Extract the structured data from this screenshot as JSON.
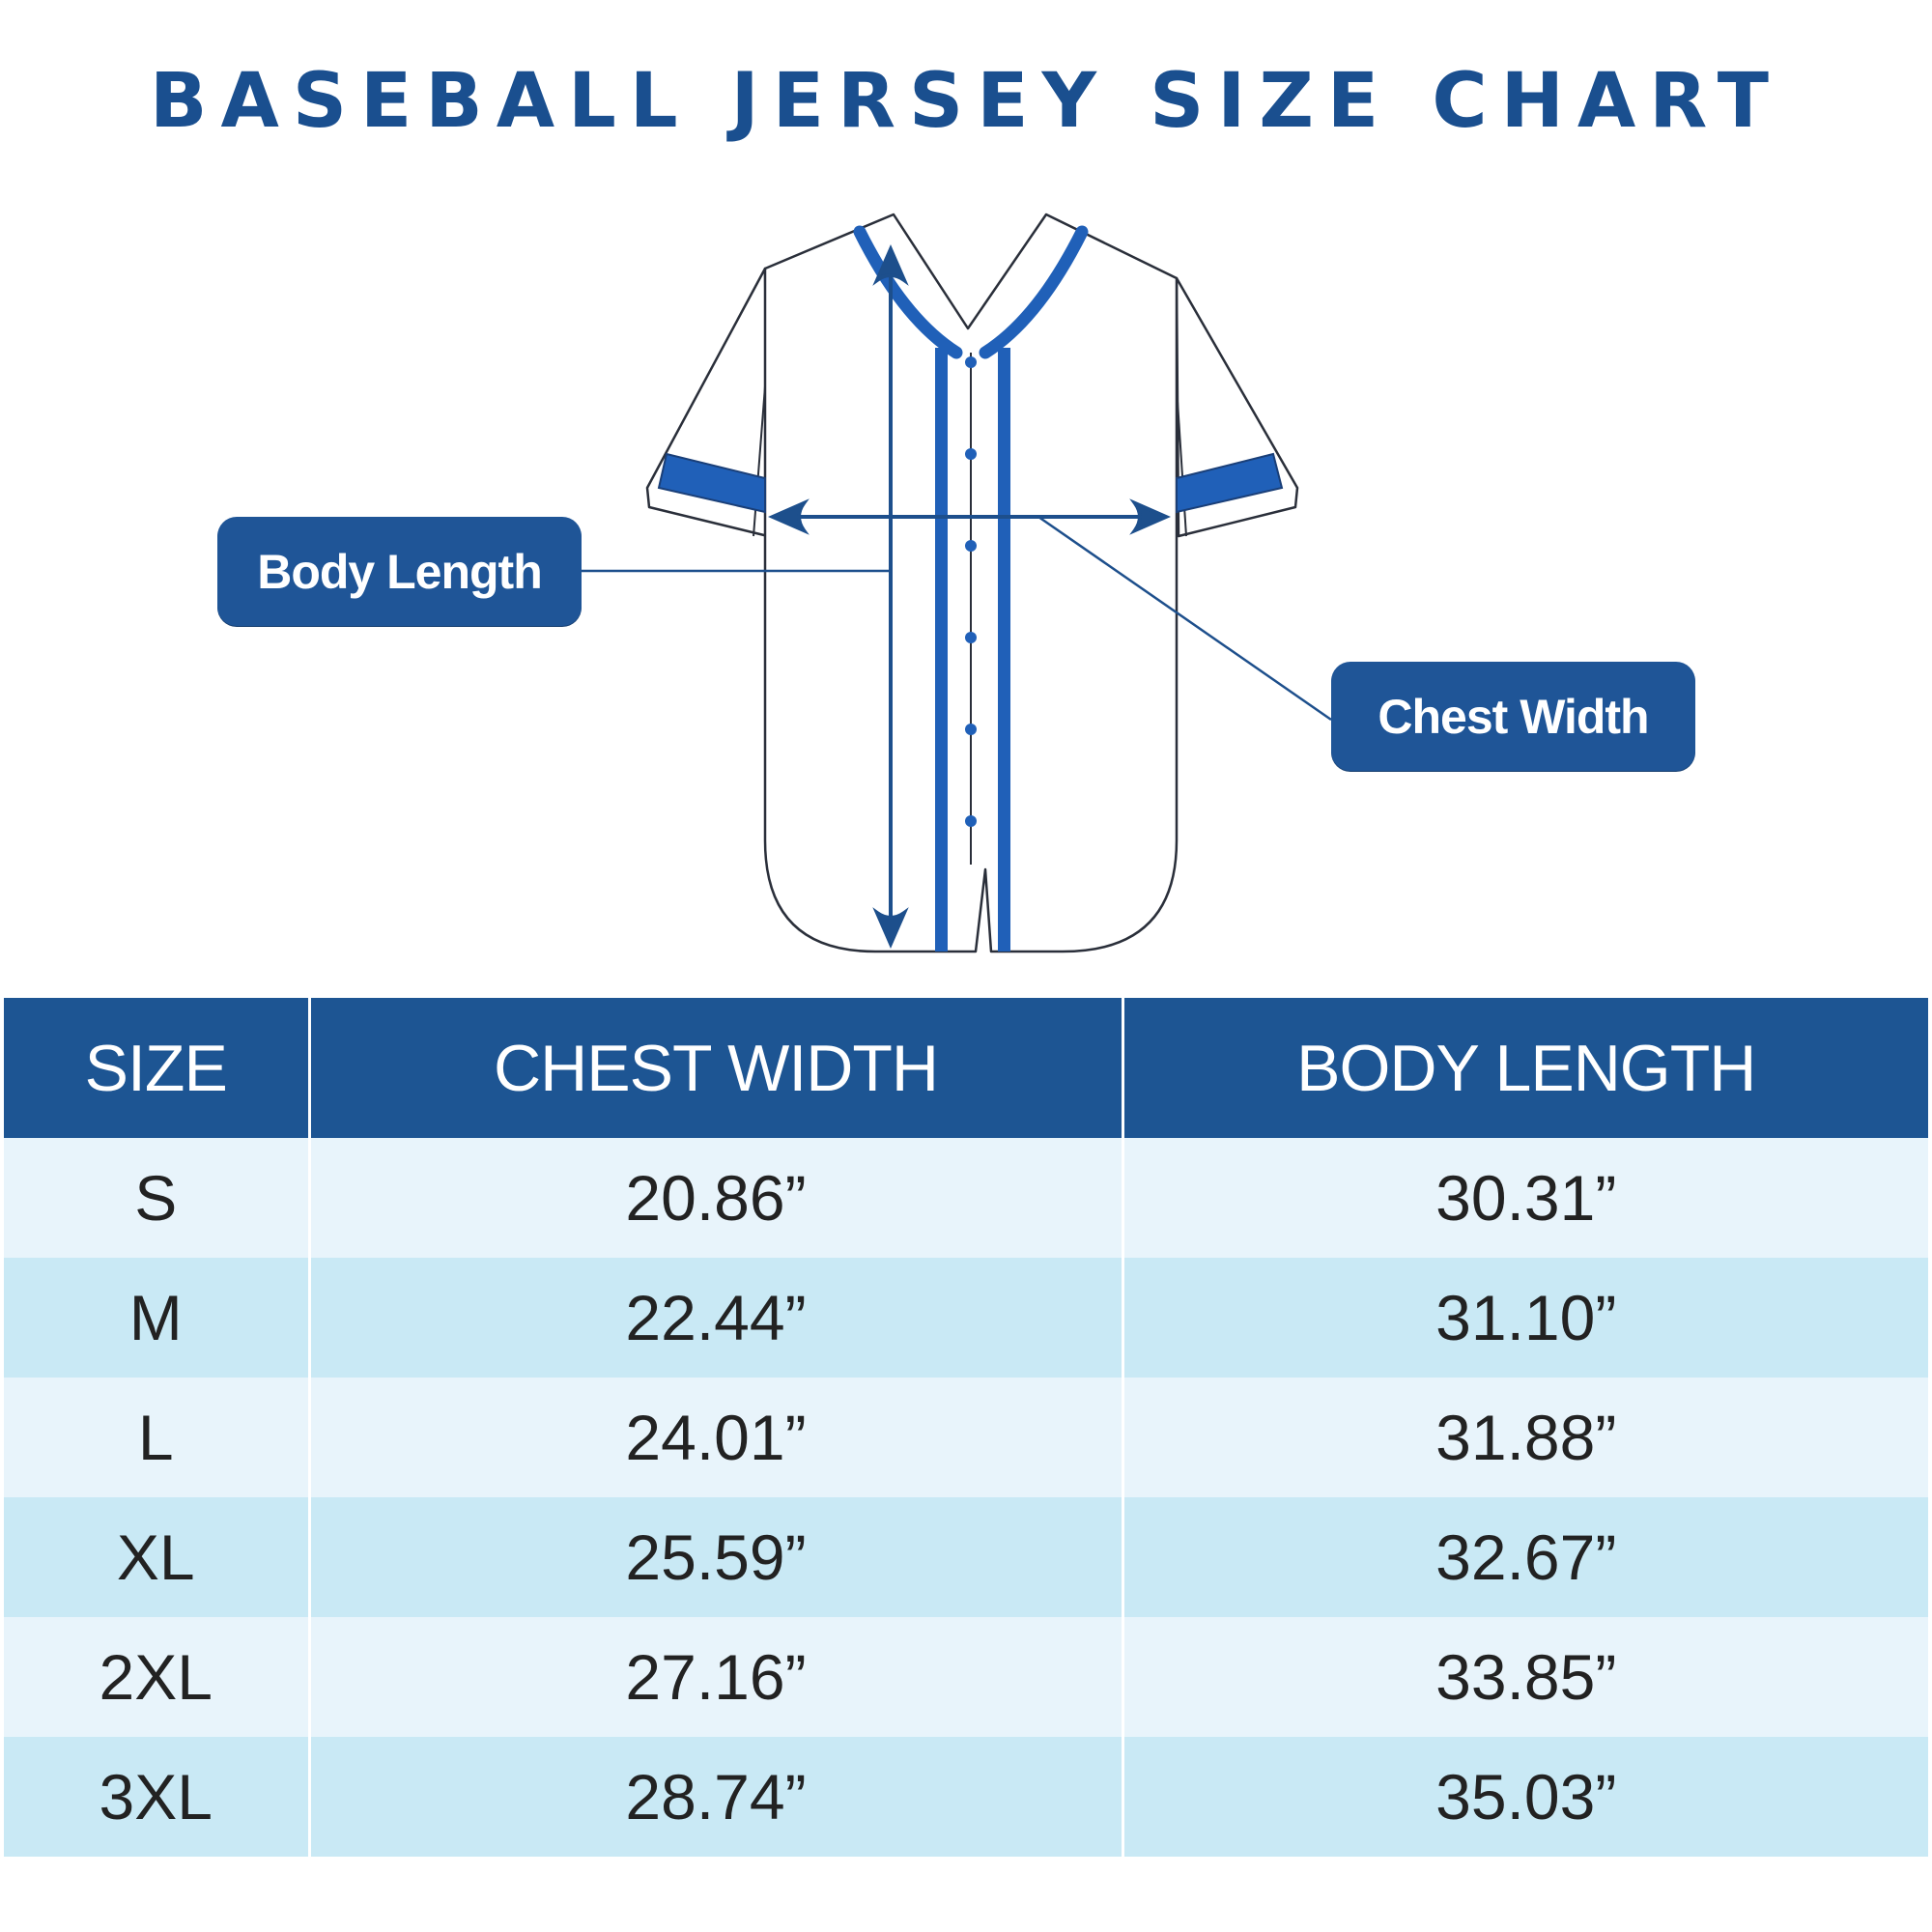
{
  "title": "BASEBALL JERSEY SIZE CHART",
  "callouts": {
    "body_length": "Body Length",
    "chest_width": "Chest Width"
  },
  "table": {
    "headers": [
      "SIZE",
      "CHEST WIDTH",
      "BODY LENGTH"
    ],
    "rows": [
      [
        "S",
        "20.86”",
        "30.31”"
      ],
      [
        "M",
        "22.44”",
        "31.10”"
      ],
      [
        "L",
        "24.01”",
        "31.88”"
      ],
      [
        "XL",
        "25.59”",
        "32.67”"
      ],
      [
        "2XL",
        "27.16”",
        "33.85”"
      ],
      [
        "3XL",
        "28.74”",
        "35.03”"
      ]
    ]
  },
  "colors": {
    "brand_blue": "#1d5593",
    "trim_blue": "#2060b8",
    "row_light": "#e8f4fb",
    "row_alt": "#c9e9f5"
  },
  "icons": [
    "jersey-illustration",
    "body-length-arrow",
    "chest-width-arrow"
  ]
}
